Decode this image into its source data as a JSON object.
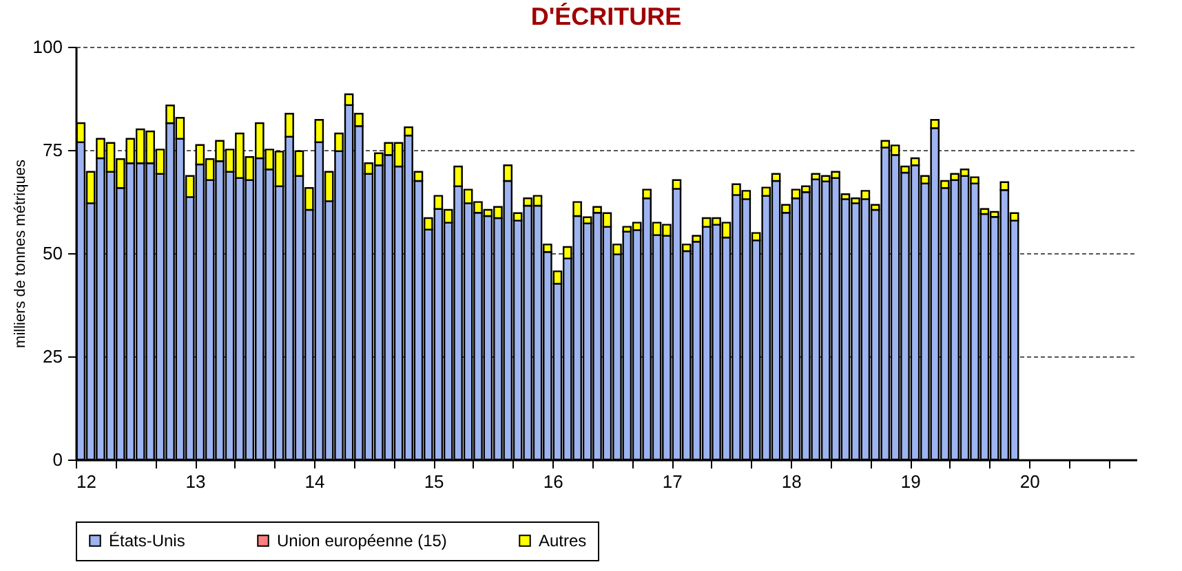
{
  "chart_data": {
    "type": "bar",
    "title": "D'ÉCRITURE",
    "ylabel": "milliers de tonnes métriques",
    "stacked": true,
    "grid": "y",
    "legend": "bottom",
    "x": [
      12.042,
      12.125,
      12.208,
      12.292,
      12.375,
      12.458,
      12.542,
      12.625,
      12.708,
      12.792,
      12.875,
      12.958,
      13.042,
      13.125,
      13.208,
      13.292,
      13.375,
      13.458,
      13.542,
      13.625,
      13.708,
      13.792,
      13.875,
      13.958,
      14.042,
      14.125,
      14.208,
      14.292,
      14.375,
      14.458,
      14.542,
      14.625,
      14.708,
      14.792,
      14.875,
      14.958,
      15.042,
      15.125,
      15.208,
      15.292,
      15.375,
      15.458,
      15.542,
      15.625,
      15.708,
      15.792,
      15.875,
      15.958,
      16.042,
      16.125,
      16.208,
      16.292,
      16.375,
      16.458,
      16.542,
      16.625,
      16.708,
      16.792,
      16.875,
      16.958,
      17.042,
      17.125,
      17.208,
      17.292,
      17.375,
      17.458,
      17.542,
      17.625,
      17.708,
      17.792,
      17.875,
      17.958,
      18.042,
      18.125,
      18.208,
      18.292,
      18.375,
      18.458,
      18.542,
      18.625,
      18.708,
      18.792,
      18.875,
      18.958,
      19.042,
      19.125,
      19.208,
      19.292,
      19.375,
      19.458,
      19.542,
      19.625,
      19.708,
      19.792,
      19.875
    ],
    "xlim": [
      12,
      20.9
    ],
    "xticks": [
      12,
      {
        "value": 12.333,
        "label": null
      },
      {
        "value": 12.667,
        "label": null
      },
      13,
      {
        "value": 13.333,
        "label": null
      },
      {
        "value": 13.667,
        "label": null
      },
      14,
      {
        "value": 14.333,
        "label": null
      },
      {
        "value": 14.667,
        "label": null
      },
      15,
      {
        "value": 15.333,
        "label": null
      },
      {
        "value": 15.667,
        "label": null
      },
      16,
      {
        "value": 16.333,
        "label": null
      },
      {
        "value": 16.667,
        "label": null
      },
      17,
      {
        "value": 17.333,
        "label": null
      },
      {
        "value": 17.667,
        "label": null
      },
      18,
      {
        "value": 18.333,
        "label": null
      },
      {
        "value": 18.667,
        "label": null
      },
      19,
      {
        "value": 19.333,
        "label": null
      },
      {
        "value": 19.667,
        "label": null
      },
      20,
      {
        "value": 20.333,
        "label": null
      },
      {
        "value": 20.667,
        "label": null
      }
    ],
    "ylim": [
      0,
      100
    ],
    "yticks": [
      0,
      25,
      50,
      75,
      100
    ],
    "series": [
      {
        "name": "États-Unis",
        "color": "#9db4f0",
        "values": [
          76.9,
          62.1,
          73.0,
          69.7,
          65.8,
          71.8,
          71.8,
          71.8,
          69.2,
          81.5,
          77.7,
          63.6,
          71.5,
          67.7,
          72.3,
          69.7,
          68.2,
          67.7,
          73.0,
          70.3,
          66.2,
          78.2,
          68.7,
          60.5,
          76.9,
          62.6,
          74.7,
          85.9,
          80.8,
          69.2,
          71.3,
          73.8,
          71.0,
          78.5,
          67.5,
          55.7,
          60.7,
          57.4,
          66.2,
          62.1,
          59.8,
          59.0,
          58.5,
          67.5,
          57.9,
          61.5,
          61.5,
          50.3,
          42.6,
          48.7,
          59.0,
          57.2,
          59.8,
          56.4,
          49.7,
          55.2,
          55.6,
          63.3,
          54.4,
          54.2,
          65.6,
          50.5,
          52.8,
          56.4,
          56.9,
          53.8,
          64.1,
          63.1,
          53.1,
          63.9,
          67.5,
          59.8,
          63.3,
          64.8,
          67.9,
          67.4,
          68.2,
          63.1,
          62.1,
          63.1,
          60.5,
          75.6,
          73.8,
          69.5,
          71.3,
          66.9,
          80.3,
          65.8,
          67.7,
          68.7,
          66.9,
          59.5,
          58.8,
          65.3,
          57.9
        ]
      },
      {
        "name": "Union européenne (15)",
        "color": "#ff8080",
        "values": [
          null,
          null,
          null,
          null,
          null,
          null,
          null,
          null,
          null,
          null,
          null,
          null,
          null,
          null,
          null,
          null,
          null,
          null,
          null,
          null,
          null,
          null,
          null,
          null,
          null,
          null,
          null,
          null,
          null,
          null,
          null,
          null,
          null,
          null,
          null,
          null,
          null,
          null,
          null,
          null,
          null,
          null,
          null,
          null,
          null,
          null,
          null,
          null,
          null,
          null,
          null,
          null,
          null,
          null,
          null,
          null,
          null,
          null,
          null,
          null,
          null,
          null,
          null,
          null,
          null,
          null,
          null,
          null,
          null,
          null,
          null,
          null,
          null,
          null,
          null,
          null,
          null,
          null,
          null,
          null,
          null,
          null,
          null,
          null,
          null,
          null,
          null,
          null,
          null,
          null,
          null,
          null,
          null,
          null,
          null
        ]
      },
      {
        "name": "Autres",
        "color": "#ffff00",
        "values": [
          4.6,
          7.6,
          4.7,
          7.0,
          7.0,
          5.9,
          8.2,
          7.7,
          5.9,
          4.3,
          5.1,
          5.1,
          4.7,
          5.1,
          4.9,
          5.4,
          10.8,
          5.6,
          8.5,
          4.8,
          8.4,
          5.6,
          6.0,
          5.3,
          5.4,
          7.1,
          4.3,
          2.6,
          3.0,
          2.6,
          2.9,
          2.9,
          5.7,
          2.0,
          2.2,
          2.8,
          3.2,
          3.1,
          4.8,
          3.3,
          2.6,
          1.5,
          2.7,
          3.8,
          1.8,
          1.8,
          2.4,
          1.8,
          3.0,
          2.8,
          3.4,
          1.5,
          1.4,
          3.3,
          2.4,
          1.2,
          1.8,
          2.1,
          3.0,
          2.7,
          2.1,
          1.6,
          1.4,
          2.1,
          1.6,
          3.6,
          2.6,
          2.0,
          1.8,
          2.0,
          1.7,
          1.9,
          2.1,
          1.4,
          1.3,
          1.3,
          1.5,
          1.2,
          1.2,
          2.0,
          1.2,
          1.6,
          2.3,
          1.5,
          1.7,
          1.8,
          2.0,
          1.7,
          1.5,
          1.6,
          1.5,
          1.2,
          1.2,
          1.9,
          1.8
        ]
      }
    ]
  }
}
